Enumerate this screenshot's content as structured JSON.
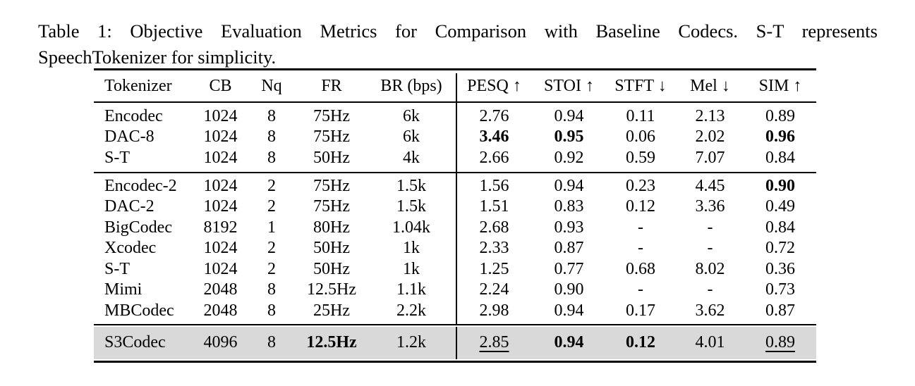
{
  "caption": {
    "line1": "Table 1: Objective Evaluation Metrics for Comparison with Baseline Codecs. S-T represents",
    "line2": "SpeechTokenizer for simplicity."
  },
  "colors": {
    "highlight_row_bg": "#d9d9d9",
    "rule_color": "#000000",
    "text_color": "#000000",
    "page_bg": "#ffffff"
  },
  "table": {
    "columns": [
      "Tokenizer",
      "CB",
      "Nq",
      "FR",
      "BR (bps)",
      "PESQ ↑",
      "STOI ↑",
      "STFT ↓",
      "Mel ↓",
      "SIM ↑"
    ],
    "groups": [
      {
        "highlight": false,
        "rows": [
          {
            "cells": [
              {
                "text": "Encodec"
              },
              {
                "text": "1024"
              },
              {
                "text": "8"
              },
              {
                "text": "75Hz"
              },
              {
                "text": "6k"
              },
              {
                "text": "2.76"
              },
              {
                "text": "0.94"
              },
              {
                "text": "0.11"
              },
              {
                "text": "2.13"
              },
              {
                "text": "0.89"
              }
            ]
          },
          {
            "cells": [
              {
                "text": "DAC-8"
              },
              {
                "text": "1024"
              },
              {
                "text": "8"
              },
              {
                "text": "75Hz"
              },
              {
                "text": "6k"
              },
              {
                "text": "3.46",
                "bold": true
              },
              {
                "text": "0.95",
                "bold": true
              },
              {
                "text": "0.06"
              },
              {
                "text": "2.02"
              },
              {
                "text": "0.96",
                "bold": true
              }
            ]
          },
          {
            "cells": [
              {
                "text": "S-T"
              },
              {
                "text": "1024"
              },
              {
                "text": "8"
              },
              {
                "text": "50Hz"
              },
              {
                "text": "4k"
              },
              {
                "text": "2.66"
              },
              {
                "text": "0.92"
              },
              {
                "text": "0.59"
              },
              {
                "text": "7.07"
              },
              {
                "text": "0.84"
              }
            ]
          }
        ]
      },
      {
        "highlight": false,
        "rows": [
          {
            "cells": [
              {
                "text": "Encodec-2"
              },
              {
                "text": "1024"
              },
              {
                "text": "2"
              },
              {
                "text": "75Hz"
              },
              {
                "text": "1.5k"
              },
              {
                "text": "1.56"
              },
              {
                "text": "0.94"
              },
              {
                "text": "0.23"
              },
              {
                "text": "4.45"
              },
              {
                "text": "0.90",
                "bold": true
              }
            ]
          },
          {
            "cells": [
              {
                "text": "DAC-2"
              },
              {
                "text": "1024"
              },
              {
                "text": "2"
              },
              {
                "text": "75Hz"
              },
              {
                "text": "1.5k"
              },
              {
                "text": "1.51"
              },
              {
                "text": "0.83"
              },
              {
                "text": "0.12"
              },
              {
                "text": "3.36"
              },
              {
                "text": "0.49"
              }
            ]
          },
          {
            "cells": [
              {
                "text": "BigCodec"
              },
              {
                "text": "8192"
              },
              {
                "text": "1"
              },
              {
                "text": "80Hz"
              },
              {
                "text": "1.04k"
              },
              {
                "text": "2.68"
              },
              {
                "text": "0.93"
              },
              {
                "text": "-"
              },
              {
                "text": "-"
              },
              {
                "text": "0.84"
              }
            ]
          },
          {
            "cells": [
              {
                "text": "Xcodec"
              },
              {
                "text": "1024"
              },
              {
                "text": "2"
              },
              {
                "text": "50Hz"
              },
              {
                "text": "1k"
              },
              {
                "text": "2.33"
              },
              {
                "text": "0.87"
              },
              {
                "text": "-"
              },
              {
                "text": "-"
              },
              {
                "text": "0.72"
              }
            ]
          },
          {
            "cells": [
              {
                "text": "S-T"
              },
              {
                "text": "1024"
              },
              {
                "text": "2"
              },
              {
                "text": "50Hz"
              },
              {
                "text": "1k"
              },
              {
                "text": "1.25"
              },
              {
                "text": "0.77"
              },
              {
                "text": "0.68"
              },
              {
                "text": "8.02"
              },
              {
                "text": "0.36"
              }
            ]
          },
          {
            "cells": [
              {
                "text": "Mimi"
              },
              {
                "text": "2048"
              },
              {
                "text": "8"
              },
              {
                "text": "12.5Hz"
              },
              {
                "text": "1.1k"
              },
              {
                "text": "2.24"
              },
              {
                "text": "0.90"
              },
              {
                "text": "-"
              },
              {
                "text": "-"
              },
              {
                "text": "0.73"
              }
            ]
          },
          {
            "cells": [
              {
                "text": "MBCodec"
              },
              {
                "text": "2048"
              },
              {
                "text": "8"
              },
              {
                "text": "25Hz"
              },
              {
                "text": "2.2k"
              },
              {
                "text": "2.98"
              },
              {
                "text": "0.94"
              },
              {
                "text": "0.17"
              },
              {
                "text": "3.62"
              },
              {
                "text": "0.87"
              }
            ]
          }
        ]
      },
      {
        "highlight": true,
        "rows": [
          {
            "cells": [
              {
                "text": "S3Codec"
              },
              {
                "text": "4096"
              },
              {
                "text": "8"
              },
              {
                "text": "12.5Hz",
                "bold": true
              },
              {
                "text": "1.2k"
              },
              {
                "text": "2.85",
                "underline": true
              },
              {
                "text": "0.94",
                "bold": true
              },
              {
                "text": "0.12",
                "bold": true
              },
              {
                "text": "4.01"
              },
              {
                "text": "0.89",
                "underline": true
              }
            ]
          }
        ]
      }
    ]
  }
}
